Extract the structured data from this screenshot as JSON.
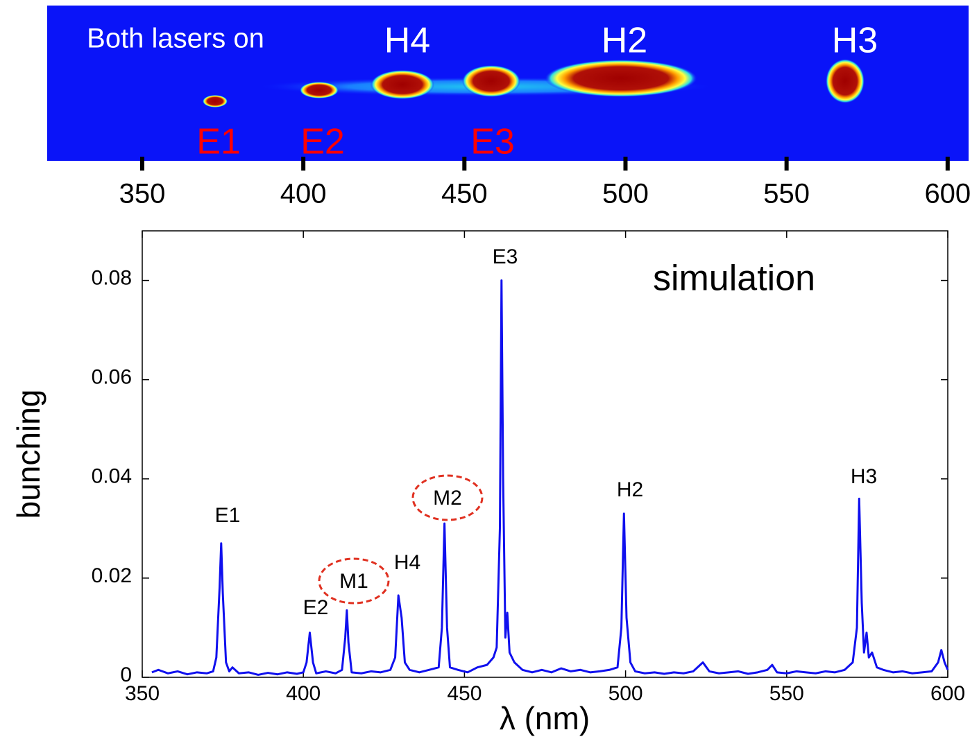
{
  "chart_data": [
    {
      "type": "image",
      "annotations": [
        "Both lasers on",
        "H4",
        "H2",
        "H3",
        "E1",
        "E2",
        "E3"
      ],
      "xlim": [
        320.5,
        606.5
      ],
      "xticks": [
        350,
        400,
        450,
        500,
        550,
        600
      ]
    },
    {
      "type": "line",
      "xlabel": "λ (nm)",
      "ylabel": "bunching",
      "note": "simulation",
      "annotations": [
        "E1",
        "E2",
        "M1",
        "H4",
        "M2",
        "E3",
        "H2",
        "H3"
      ],
      "color": "#1010ee",
      "xlim": [
        350,
        600
      ],
      "ylim": [
        0,
        0.09
      ],
      "xticks": [
        350,
        400,
        450,
        500,
        550,
        600
      ],
      "yticks": [
        0,
        0.02,
        0.04,
        0.06,
        0.08
      ],
      "grid": false,
      "x": [
        353,
        355,
        358,
        361,
        364,
        367,
        370,
        372,
        373,
        374,
        374.5,
        375,
        376,
        377,
        378,
        380,
        383,
        386,
        389,
        392,
        395,
        398,
        400,
        401,
        402,
        403,
        404,
        407,
        410,
        412,
        413,
        413.5,
        414,
        415,
        418,
        421,
        424,
        427,
        428.5,
        429.5,
        430.5,
        431.5,
        433,
        436,
        439,
        442,
        443,
        443.8,
        444.6,
        445.5,
        448,
        451,
        454,
        457,
        459,
        460,
        461,
        461.5,
        462,
        462.7,
        463.3,
        464,
        465.5,
        468,
        471,
        474,
        477,
        480,
        483,
        486,
        489,
        492,
        495,
        497.5,
        498.7,
        499.5,
        500.3,
        501.5,
        503,
        506,
        509,
        512,
        515,
        518,
        521,
        524,
        526,
        529,
        532,
        535,
        538,
        541,
        544,
        545.5,
        547,
        550,
        553,
        556,
        559,
        562,
        565,
        568,
        570.5,
        571.8,
        572.5,
        573.3,
        574,
        574.8,
        575.5,
        576.5,
        578,
        580,
        583,
        586,
        589,
        592,
        595,
        597,
        598,
        599,
        600
      ],
      "values": [
        0.001,
        0.0015,
        0.0008,
        0.0012,
        0.0006,
        0.001,
        0.0008,
        0.0012,
        0.004,
        0.018,
        0.027,
        0.017,
        0.003,
        0.0012,
        0.002,
        0.0008,
        0.001,
        0.0005,
        0.0009,
        0.0006,
        0.001,
        0.0007,
        0.001,
        0.003,
        0.009,
        0.003,
        0.0008,
        0.0012,
        0.0008,
        0.0015,
        0.008,
        0.0135,
        0.007,
        0.001,
        0.0008,
        0.0012,
        0.001,
        0.0015,
        0.004,
        0.0165,
        0.012,
        0.003,
        0.0015,
        0.001,
        0.0015,
        0.002,
        0.01,
        0.031,
        0.01,
        0.002,
        0.0015,
        0.001,
        0.002,
        0.0025,
        0.004,
        0.006,
        0.03,
        0.08,
        0.04,
        0.008,
        0.013,
        0.005,
        0.003,
        0.0015,
        0.001,
        0.0015,
        0.001,
        0.0018,
        0.0012,
        0.0015,
        0.001,
        0.0012,
        0.0015,
        0.002,
        0.01,
        0.033,
        0.012,
        0.003,
        0.0012,
        0.0008,
        0.001,
        0.0007,
        0.001,
        0.0008,
        0.0012,
        0.003,
        0.0012,
        0.0008,
        0.001,
        0.0012,
        0.0007,
        0.001,
        0.0015,
        0.0025,
        0.001,
        0.0008,
        0.0012,
        0.001,
        0.0008,
        0.0012,
        0.001,
        0.0015,
        0.003,
        0.01,
        0.036,
        0.015,
        0.005,
        0.009,
        0.004,
        0.005,
        0.002,
        0.0015,
        0.001,
        0.0012,
        0.0008,
        0.001,
        0.0012,
        0.003,
        0.0055,
        0.003,
        0.0015
      ]
    }
  ]
}
